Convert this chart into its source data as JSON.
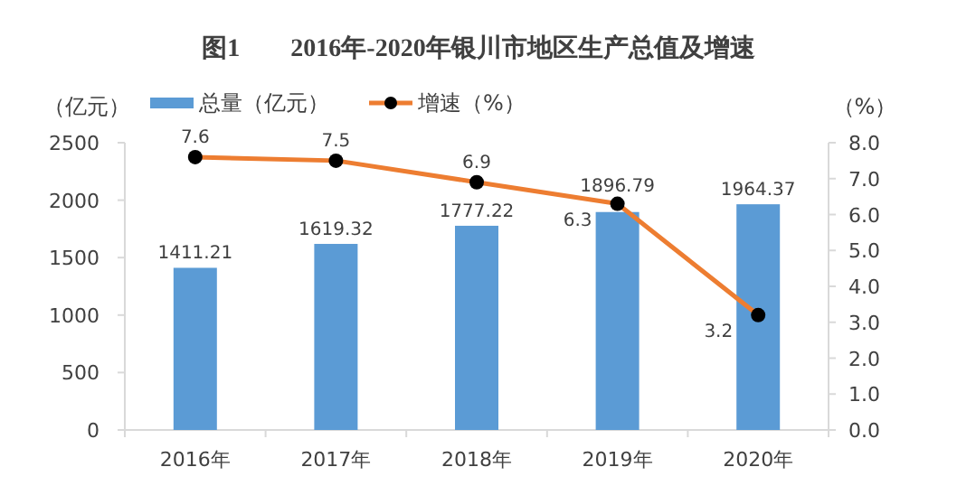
{
  "chart_data": {
    "type": "bar",
    "title": "图1　　2016年-2020年银川市地区生产总值及增速",
    "ylabel": "（亿元）",
    "y2label": "（%）",
    "categories": [
      "2016年",
      "2017年",
      "2018年",
      "2019年",
      "2020年"
    ],
    "series": [
      {
        "name": "总量（亿元）",
        "type": "bar",
        "color": "#5b9bd5",
        "values": [
          1411.21,
          1619.32,
          1777.22,
          1896.79,
          1964.37
        ]
      },
      {
        "name": "增速（%）",
        "type": "line",
        "axis": "y2",
        "color": "#ed7d31",
        "marker": "circle",
        "values": [
          7.6,
          7.5,
          6.9,
          6.3,
          3.2
        ]
      }
    ],
    "ylim": [
      0,
      2500
    ],
    "yticks": [
      0,
      500,
      1000,
      1500,
      2000,
      2500
    ],
    "y2lim": [
      0,
      8
    ],
    "y2ticks": [
      {
        "value": 0,
        "label": "0.0"
      },
      {
        "value": 1,
        "label": "1.0"
      },
      {
        "value": 2,
        "label": "2.0"
      },
      {
        "value": 3,
        "label": "3.0"
      },
      {
        "value": 4,
        "label": "4.0"
      },
      {
        "value": 5,
        "label": "5.0"
      },
      {
        "value": 6,
        "label": "6.0"
      },
      {
        "value": 7,
        "label": "7.0"
      },
      {
        "value": 8,
        "label": "8.0"
      }
    ],
    "data_labels": true,
    "legend": "top"
  }
}
